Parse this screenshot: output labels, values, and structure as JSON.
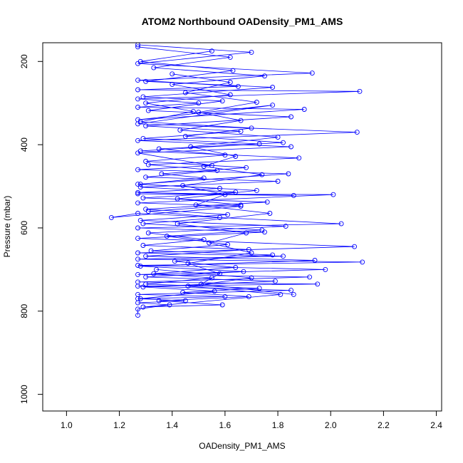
{
  "chart_data": {
    "type": "line",
    "title": "ATOM2 Northbound OADensity_PM1_AMS",
    "xlabel": "OADensity_PM1_AMS",
    "ylabel": "Pressure (mbar)",
    "xlim": [
      0.91,
      2.42
    ],
    "ylim": [
      1040,
      155
    ],
    "y_reversed": true,
    "x_ticks": [
      "1.0",
      "1.2",
      "1.4",
      "1.6",
      "1.8",
      "2.0",
      "2.2",
      "2.4"
    ],
    "x_tick_values": [
      1.0,
      1.2,
      1.4,
      1.6,
      1.8,
      2.0,
      2.2,
      2.4
    ],
    "y_ticks": [
      "200",
      "400",
      "600",
      "800",
      "1000"
    ],
    "y_tick_values": [
      200,
      400,
      600,
      800,
      1000
    ],
    "grid": false,
    "legend": "none",
    "color": "#0000ff",
    "series": [
      {
        "x": [
          1.27,
          1.7,
          1.27,
          1.93,
          1.27,
          1.65,
          1.27,
          2.11,
          1.27,
          1.5,
          1.27,
          1.9,
          1.27,
          1.78,
          1.27,
          2.1,
          1.27,
          1.85,
          1.27,
          1.55,
          1.27,
          1.84,
          1.27,
          1.58,
          1.27,
          1.86,
          1.27,
          2.01,
          1.27,
          1.66,
          1.17,
          1.27,
          2.04,
          1.27,
          1.75,
          1.27,
          2.09,
          1.27,
          1.82,
          1.27,
          2.12,
          1.27,
          1.98,
          1.27,
          1.92,
          1.27,
          1.95,
          1.27,
          1.85,
          1.27,
          1.6,
          1.27,
          1.45,
          1.27,
          1.39,
          1.27,
          1.27
        ],
        "y": [
          160,
          178,
          205,
          228,
          245,
          260,
          268,
          272,
          290,
          300,
          310,
          315,
          340,
          305,
          350,
          370,
          390,
          405,
          420,
          450,
          460,
          470,
          495,
          505,
          515,
          522,
          518,
          520,
          540,
          548,
          575,
          565,
          590,
          600,
          610,
          625,
          645,
          660,
          668,
          675,
          682,
          690,
          700,
          712,
          718,
          730,
          735,
          740,
          750,
          760,
          765,
          770,
          775,
          780,
          785,
          795,
          810
        ]
      },
      {
        "x": [
          1.27,
          1.62,
          1.33,
          1.75,
          1.4,
          1.62,
          1.3,
          1.48,
          1.28,
          1.7,
          1.45,
          1.82,
          1.35,
          1.6,
          1.3,
          1.68,
          1.36,
          1.52,
          1.28,
          1.72,
          1.42,
          1.66,
          1.31,
          1.58,
          1.29,
          1.74,
          1.38,
          1.61,
          1.32,
          1.78,
          1.41,
          1.64,
          1.33,
          1.55,
          1.3,
          1.73,
          1.44,
          1.69,
          1.35,
          1.59,
          1.29,
          1.81,
          1.46,
          1.7,
          1.34
        ],
        "y": [
          165,
          190,
          215,
          235,
          255,
          280,
          300,
          320,
          345,
          360,
          380,
          395,
          410,
          425,
          440,
          455,
          470,
          480,
          495,
          510,
          530,
          545,
          560,
          575,
          590,
          605,
          620,
          640,
          655,
          665,
          680,
          695,
          710,
          720,
          735,
          745,
          755,
          765,
          775,
          785,
          790,
          760,
          740,
          720,
          700
        ]
      },
      {
        "x": [
          1.55,
          1.28,
          1.63,
          1.3,
          1.78,
          1.29,
          1.59,
          1.31,
          1.85,
          1.3,
          1.66,
          1.29,
          1.73,
          1.28,
          1.88,
          1.31,
          1.57,
          1.3,
          1.8,
          1.28,
          1.64,
          1.29,
          1.76,
          1.3,
          1.61,
          1.28,
          1.83,
          1.31,
          1.52,
          1.29,
          1.69,
          1.3,
          1.94,
          1.28,
          1.67,
          1.3,
          1.79,
          1.29,
          1.56,
          1.28
        ],
        "y": [
          175,
          200,
          222,
          248,
          262,
          285,
          295,
          318,
          333,
          355,
          368,
          385,
          398,
          415,
          432,
          448,
          462,
          478,
          488,
          502,
          514,
          528,
          538,
          555,
          568,
          582,
          596,
          612,
          628,
          642,
          652,
          668,
          678,
          692,
          705,
          718,
          728,
          742,
          752,
          770
        ]
      },
      {
        "x": [
          1.4,
          1.62,
          1.45,
          1.72,
          1.5,
          1.66,
          1.43,
          1.8,
          1.47,
          1.64,
          1.52,
          1.74,
          1.44,
          1.6,
          1.49,
          1.77,
          1.42,
          1.68,
          1.54,
          1.7,
          1.46,
          1.58,
          1.51,
          1.86
        ],
        "y": [
          230,
          250,
          275,
          298,
          322,
          342,
          365,
          382,
          405,
          428,
          452,
          472,
          498,
          520,
          545,
          565,
          590,
          612,
          636,
          660,
          685,
          710,
          735,
          760
        ]
      }
    ]
  }
}
